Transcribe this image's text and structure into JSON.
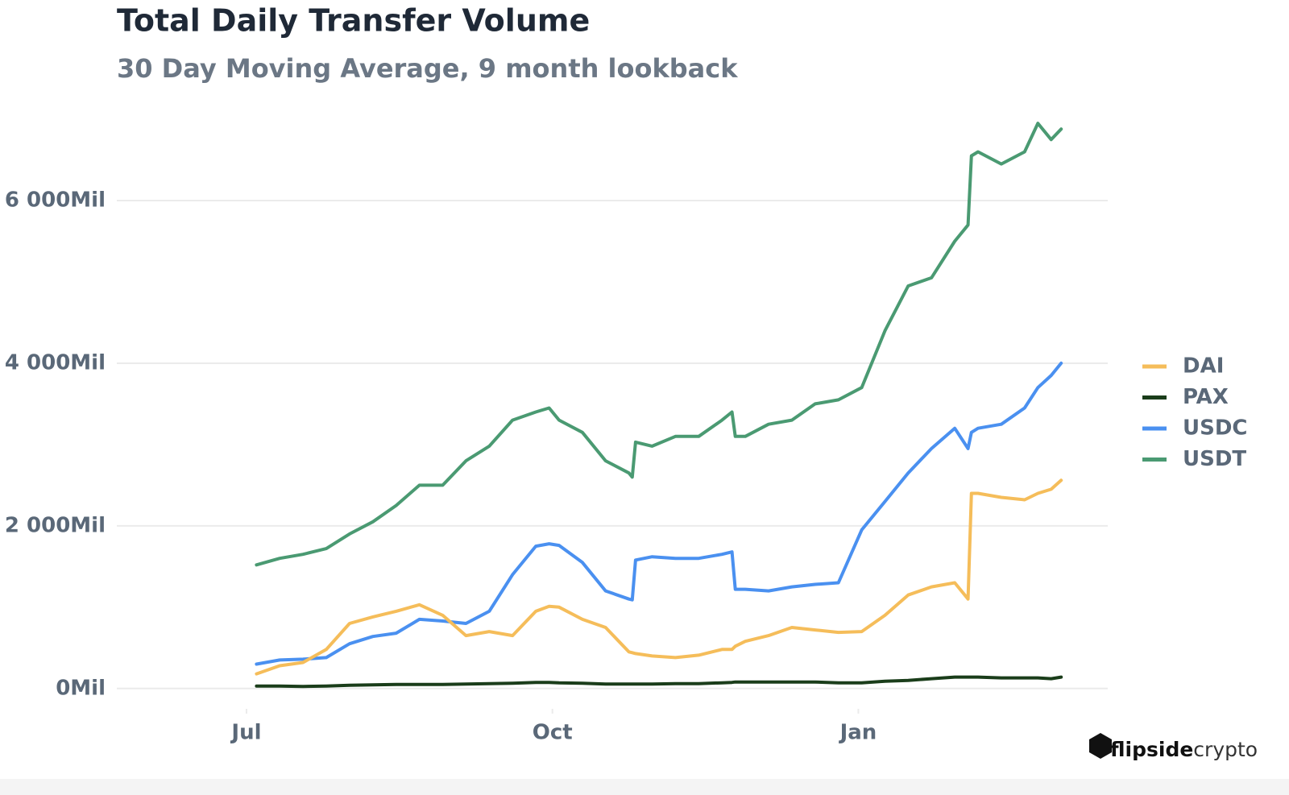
{
  "chart_data": {
    "type": "line",
    "title": "Total Daily Transfer Volume",
    "subtitle": "30 Day Moving Average, 9 month lookback",
    "x": [
      3,
      10,
      17,
      24,
      31,
      38,
      45,
      52,
      59,
      66,
      73,
      80,
      87,
      91,
      94,
      101,
      108,
      115,
      116,
      117,
      122,
      129,
      136,
      143,
      146,
      147,
      150,
      157,
      164,
      171,
      178,
      185,
      192,
      199,
      206,
      213,
      217,
      218,
      220,
      227,
      234,
      238,
      242,
      245
    ],
    "xlim": [
      -39,
      259
    ],
    "xticks": [
      {
        "value": 0,
        "label": "Jul"
      },
      {
        "value": 92,
        "label": "Oct"
      },
      {
        "value": 184,
        "label": "Jan"
      }
    ],
    "ylim": [
      -250,
      7080
    ],
    "yticks": [
      {
        "value": 0,
        "label": "0Mil"
      },
      {
        "value": 2000,
        "label": "2 000Mil"
      },
      {
        "value": 4000,
        "label": "4 000Mil"
      },
      {
        "value": 6000,
        "label": "6 000Mil"
      }
    ],
    "grid": true,
    "legend": "right",
    "series": [
      {
        "name": "DAI",
        "color": "#f5bd5a",
        "values": [
          180,
          280,
          320,
          480,
          800,
          880,
          950,
          1030,
          900,
          650,
          700,
          650,
          950,
          1010,
          1000,
          850,
          750,
          450,
          440,
          430,
          400,
          380,
          410,
          480,
          480,
          520,
          580,
          650,
          750,
          720,
          690,
          700,
          900,
          1150,
          1250,
          1300,
          1100,
          2400,
          2400,
          2350,
          2320,
          2400,
          2450,
          2560
        ]
      },
      {
        "name": "PAX",
        "color": "#1a3d1a",
        "values": [
          30,
          30,
          25,
          30,
          40,
          45,
          50,
          50,
          50,
          55,
          60,
          65,
          75,
          75,
          70,
          65,
          55,
          55,
          55,
          55,
          55,
          60,
          60,
          70,
          75,
          80,
          80,
          80,
          80,
          80,
          70,
          70,
          90,
          100,
          120,
          140,
          140,
          140,
          140,
          130,
          130,
          130,
          120,
          140
        ]
      },
      {
        "name": "USDC",
        "color": "#4a90f0",
        "values": [
          300,
          350,
          360,
          380,
          550,
          640,
          680,
          850,
          830,
          800,
          950,
          1400,
          1750,
          1780,
          1760,
          1550,
          1200,
          1100,
          1090,
          1580,
          1620,
          1600,
          1600,
          1650,
          1680,
          1220,
          1220,
          1200,
          1250,
          1280,
          1300,
          1950,
          2300,
          2650,
          2950,
          3200,
          2950,
          3150,
          3200,
          3250,
          3450,
          3700,
          3850,
          4000
        ]
      },
      {
        "name": "USDT",
        "color": "#4a9a72",
        "values": [
          1520,
          1600,
          1650,
          1720,
          1900,
          2050,
          2250,
          2500,
          2500,
          2800,
          2980,
          3300,
          3400,
          3450,
          3300,
          3150,
          2800,
          2650,
          2600,
          3030,
          2980,
          3100,
          3100,
          3300,
          3400,
          3100,
          3100,
          3250,
          3300,
          3500,
          3550,
          3700,
          4400,
          4950,
          5050,
          5500,
          5700,
          6550,
          6600,
          6450,
          6600,
          6950,
          6750,
          6880
        ]
      }
    ]
  },
  "brand": {
    "bold": "flipside",
    "light": "crypto"
  }
}
